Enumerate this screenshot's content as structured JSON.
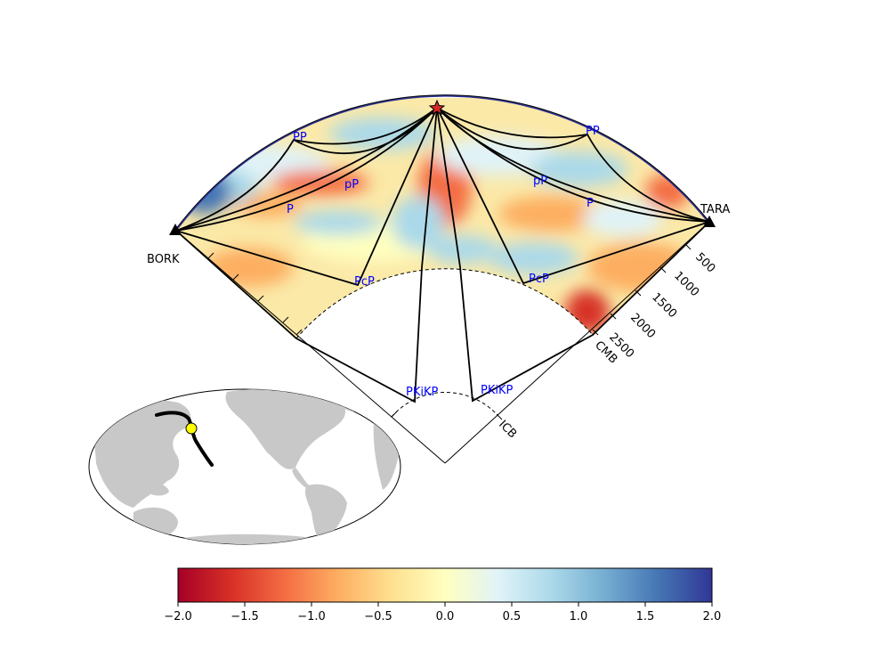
{
  "stations": {
    "left": "BORK",
    "right": "TARA"
  },
  "phases": {
    "pp_left": "PP",
    "pp_right": "PP",
    "p_left": "P",
    "p_right": "P",
    "pP_left": "pP",
    "pP_right": "pP",
    "pcp_left": "PcP",
    "pcp_right": "PcP",
    "pkikp_left": "PKiKP",
    "pkikp_right": "PKiKP"
  },
  "boundaries": {
    "cmb": "CMB",
    "icb": "ICB"
  },
  "depth_ticks": [
    "500",
    "1000",
    "1500",
    "2000",
    "2500"
  ],
  "colorbar": {
    "ticks": [
      "−2.0",
      "−1.5",
      "−1.0",
      "−0.5",
      "0.0",
      "0.5",
      "1.0",
      "1.5",
      "2.0"
    ],
    "range": [
      -2.0,
      2.0
    ],
    "colormap": "RdYlBu",
    "colors": [
      "#a50026",
      "#d73027",
      "#f46d43",
      "#fdae61",
      "#fee090",
      "#ffffbf",
      "#e0f3f8",
      "#abd9e9",
      "#74add1",
      "#4575b4",
      "#313695"
    ]
  },
  "colors": {
    "phase_label": "#0000ff",
    "ray": "#000000",
    "event_star": "#d62728",
    "map_land": "#c8c8c8",
    "map_event_dot": "#ffff00"
  }
}
